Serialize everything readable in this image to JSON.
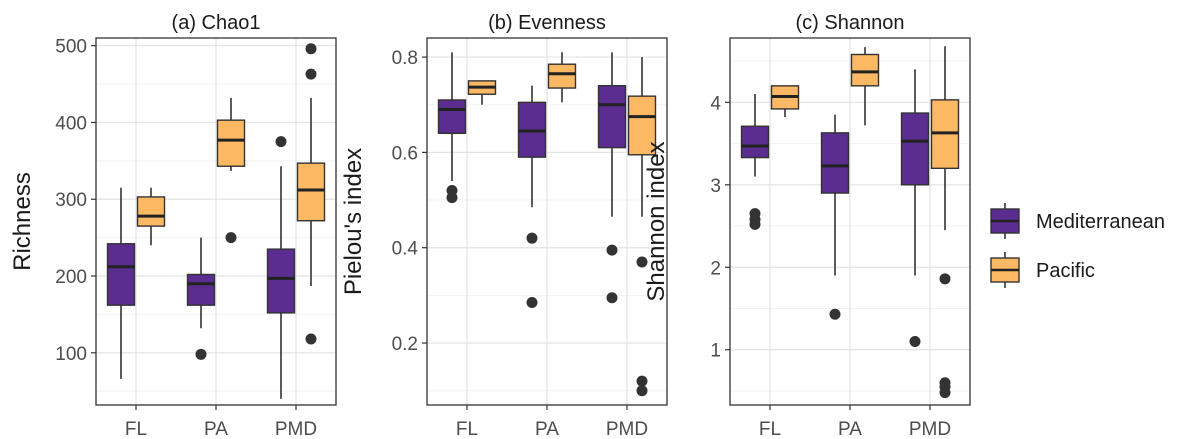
{
  "chart_data": {
    "type": "boxplot",
    "categories": [
      "FL",
      "PA",
      "PMD"
    ],
    "series_names": [
      "Mediterranean",
      "Pacific"
    ],
    "colors": {
      "Mediterranean": "#5b2d91",
      "Pacific": "#fdb863"
    },
    "legend": {
      "position": "right",
      "entries": [
        "Mediterranean",
        "Pacific"
      ]
    },
    "grid": true,
    "panels": [
      {
        "title": "(a) Chao1",
        "ylabel": "Richness",
        "ylim": [
          32,
          510
        ],
        "yticks": [
          100,
          200,
          300,
          400,
          500
        ],
        "boxes": {
          "Mediterranean": [
            {
              "category": "FL",
              "whisker_low": 66,
              "q1": 162,
              "median": 212,
              "q3": 242,
              "whisker_high": 315,
              "outliers": []
            },
            {
              "category": "PA",
              "whisker_low": 132,
              "q1": 162,
              "median": 190,
              "q3": 202,
              "whisker_high": 250,
              "outliers": [
                98
              ]
            },
            {
              "category": "PMD",
              "whisker_low": 40,
              "q1": 152,
              "median": 197,
              "q3": 235,
              "whisker_high": 343,
              "outliers": [
                375
              ]
            }
          ],
          "Pacific": [
            {
              "category": "FL",
              "whisker_low": 240,
              "q1": 265,
              "median": 278,
              "q3": 303,
              "whisker_high": 315,
              "outliers": []
            },
            {
              "category": "PA",
              "whisker_low": 337,
              "q1": 343,
              "median": 377,
              "q3": 403,
              "whisker_high": 432,
              "outliers": [
                250
              ]
            },
            {
              "category": "PMD",
              "whisker_low": 187,
              "q1": 272,
              "median": 312,
              "q3": 347,
              "whisker_high": 432,
              "outliers": [
                118,
                463,
                496
              ]
            }
          ]
        }
      },
      {
        "title": "(b) Evenness",
        "ylabel": "Pielou's index",
        "ylim": [
          0.07,
          0.84
        ],
        "yticks": [
          0.2,
          0.4,
          0.6,
          0.8
        ],
        "boxes": {
          "Mediterranean": [
            {
              "category": "FL",
              "whisker_low": 0.54,
              "q1": 0.64,
              "median": 0.69,
              "q3": 0.71,
              "whisker_high": 0.81,
              "outliers": [
                0.52,
                0.505
              ]
            },
            {
              "category": "PA",
              "whisker_low": 0.485,
              "q1": 0.59,
              "median": 0.645,
              "q3": 0.705,
              "whisker_high": 0.74,
              "outliers": [
                0.42,
                0.285
              ]
            },
            {
              "category": "PMD",
              "whisker_low": 0.465,
              "q1": 0.61,
              "median": 0.7,
              "q3": 0.74,
              "whisker_high": 0.81,
              "outliers": [
                0.395,
                0.295
              ]
            }
          ],
          "Pacific": [
            {
              "category": "FL",
              "whisker_low": 0.7,
              "q1": 0.722,
              "median": 0.737,
              "q3": 0.75,
              "whisker_high": 0.75,
              "outliers": []
            },
            {
              "category": "PA",
              "whisker_low": 0.705,
              "q1": 0.735,
              "median": 0.765,
              "q3": 0.785,
              "whisker_high": 0.81,
              "outliers": []
            },
            {
              "category": "PMD",
              "whisker_low": 0.465,
              "q1": 0.595,
              "median": 0.675,
              "q3": 0.718,
              "whisker_high": 0.8,
              "outliers": [
                0.37,
                0.12,
                0.1
              ]
            }
          ]
        }
      },
      {
        "title": "(c) Shannon",
        "ylabel": "Shannon index",
        "ylim": [
          0.33,
          4.78
        ],
        "yticks": [
          1,
          2,
          3,
          4
        ],
        "boxes": {
          "Mediterranean": [
            {
              "category": "FL",
              "whisker_low": 3.1,
              "q1": 3.33,
              "median": 3.47,
              "q3": 3.71,
              "whisker_high": 4.1,
              "outliers": [
                2.65,
                2.58,
                2.52
              ]
            },
            {
              "category": "PA",
              "whisker_low": 1.9,
              "q1": 2.9,
              "median": 3.23,
              "q3": 3.63,
              "whisker_high": 3.85,
              "outliers": [
                1.43
              ]
            },
            {
              "category": "PMD",
              "whisker_low": 1.9,
              "q1": 3.0,
              "median": 3.53,
              "q3": 3.87,
              "whisker_high": 4.4,
              "outliers": [
                1.1
              ]
            }
          ],
          "Pacific": [
            {
              "category": "FL",
              "whisker_low": 3.82,
              "q1": 3.92,
              "median": 4.07,
              "q3": 4.2,
              "whisker_high": 4.2,
              "outliers": []
            },
            {
              "category": "PA",
              "whisker_low": 3.72,
              "q1": 4.2,
              "median": 4.37,
              "q3": 4.58,
              "whisker_high": 4.67,
              "outliers": []
            },
            {
              "category": "PMD",
              "whisker_low": 2.45,
              "q1": 3.2,
              "median": 3.63,
              "q3": 4.03,
              "whisker_high": 4.68,
              "outliers": [
                1.86,
                0.6,
                0.55,
                0.48
              ]
            }
          ]
        }
      }
    ]
  }
}
